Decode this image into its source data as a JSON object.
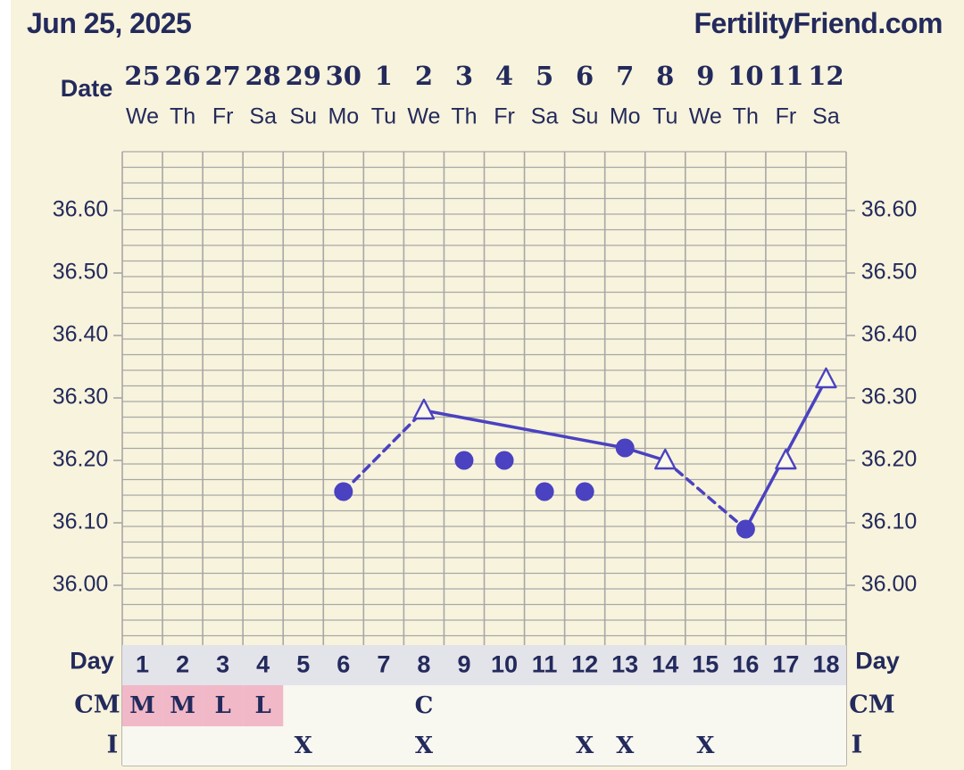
{
  "header": {
    "date": "Jun 25, 2025",
    "site": "FertilityFriend.com"
  },
  "labels": {
    "date_row": "Date",
    "day_row": "Day",
    "cm_row": "CM",
    "i_row": "I"
  },
  "colors": {
    "background": "#f8f3dc",
    "grid": "#a7a7a7",
    "series": "#4a42c0",
    "text": "#232a5c",
    "menses": "#f1b8c8",
    "day_row_bg": "#e3e3ea"
  },
  "chart_data": {
    "type": "line",
    "title": "",
    "ylabel": "",
    "xlabel": "",
    "ylim": [
      35.92,
      36.7
    ],
    "yticks": [
      "36.60",
      "36.50",
      "36.40",
      "36.30",
      "36.20",
      "36.10",
      "36.00"
    ],
    "grid": true,
    "dates": [
      "25",
      "26",
      "27",
      "28",
      "29",
      "30",
      "1",
      "2",
      "3",
      "4",
      "5",
      "6",
      "7",
      "8",
      "9",
      "10",
      "11",
      "12"
    ],
    "weekdays": [
      "We",
      "Th",
      "Fr",
      "Sa",
      "Su",
      "Mo",
      "Tu",
      "We",
      "Th",
      "Fr",
      "Sa",
      "Su",
      "Mo",
      "Tu",
      "We",
      "Th",
      "Fr",
      "Sa"
    ],
    "cycle_days": [
      "1",
      "2",
      "3",
      "4",
      "5",
      "6",
      "7",
      "8",
      "9",
      "10",
      "11",
      "12",
      "13",
      "14",
      "15",
      "16",
      "17",
      "18"
    ],
    "temperatures": [
      null,
      null,
      null,
      null,
      null,
      36.15,
      null,
      36.28,
      36.2,
      36.2,
      36.15,
      36.15,
      36.22,
      36.2,
      null,
      36.09,
      36.2,
      36.33
    ],
    "marker": [
      "",
      "",
      "",
      "",
      "",
      "circle",
      "",
      "triangle",
      "circle",
      "circle",
      "circle",
      "circle",
      "circle",
      "triangle",
      "",
      "circle",
      "triangle",
      "triangle"
    ],
    "line_styles": [
      {
        "from_day": 6,
        "to_day": 8,
        "style": "dashed"
      },
      {
        "from_day": 8,
        "to_day": 13,
        "style": "solid"
      },
      {
        "from_day": 13,
        "to_day": 14,
        "style": "solid"
      },
      {
        "from_day": 14,
        "to_day": 16,
        "style": "dashed"
      },
      {
        "from_day": 16,
        "to_day": 18,
        "style": "solid"
      }
    ],
    "cm": [
      "M",
      "M",
      "L",
      "L",
      "",
      "",
      "",
      "C",
      "",
      "",
      "",
      "",
      "",
      "",
      "",
      "",
      "",
      ""
    ],
    "cm_menses": [
      true,
      true,
      true,
      true,
      false,
      false,
      false,
      false,
      false,
      false,
      false,
      false,
      false,
      false,
      false,
      false,
      false,
      false
    ],
    "intercourse": [
      "",
      "",
      "",
      "",
      "X",
      "",
      "",
      "X",
      "",
      "",
      "",
      "X",
      "X",
      "",
      "X",
      "",
      "",
      ""
    ]
  }
}
